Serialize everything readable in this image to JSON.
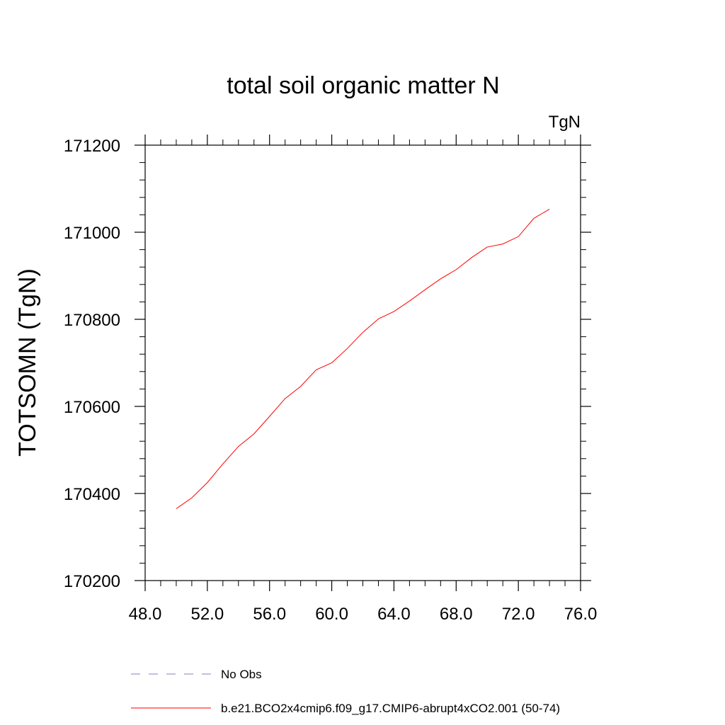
{
  "chart_data": {
    "type": "line",
    "title": "total soil organic matter N",
    "units_label": "TgN",
    "xlabel": "",
    "ylabel": "TOTSOMN  (TgN)",
    "xlim": [
      48,
      76
    ],
    "ylim": [
      170200,
      171200
    ],
    "x_ticks": [
      48,
      52,
      56,
      60,
      64,
      68,
      72,
      76
    ],
    "x_tick_labels": [
      "48.0",
      "52.0",
      "56.0",
      "60.0",
      "64.0",
      "68.0",
      "72.0",
      "76.0"
    ],
    "y_ticks": [
      170200,
      170400,
      170600,
      170800,
      171000,
      171200
    ],
    "y_tick_labels": [
      "170200",
      "170400",
      "170600",
      "170800",
      "171000",
      "171200"
    ],
    "grid": false,
    "legend": [
      {
        "label": "No Obs",
        "style": "dashed",
        "color": "#8080c0"
      },
      {
        "label": "b.e21.BCO2x4cmip6.f09_g17.CMIP6-abrupt4xCO2.001 (50-74)",
        "style": "solid",
        "color": "#ff0000"
      }
    ],
    "series": [
      {
        "name": "b.e21.BCO2x4cmip6.f09_g17.CMIP6-abrupt4xCO2.001 (50-74)",
        "color": "#ff0000",
        "x": [
          50,
          51,
          52,
          53,
          54,
          55,
          56,
          57,
          58,
          59,
          60,
          61,
          62,
          63,
          64,
          65,
          66,
          67,
          68,
          69,
          70,
          71,
          72,
          73,
          74
        ],
        "y": [
          170365,
          170390,
          170425,
          170468,
          170508,
          170537,
          170577,
          170618,
          170646,
          170684,
          170700,
          170733,
          170770,
          170801,
          170818,
          170842,
          170868,
          170893,
          170914,
          170942,
          170966,
          170973,
          170990,
          171032,
          171053
        ]
      }
    ]
  }
}
